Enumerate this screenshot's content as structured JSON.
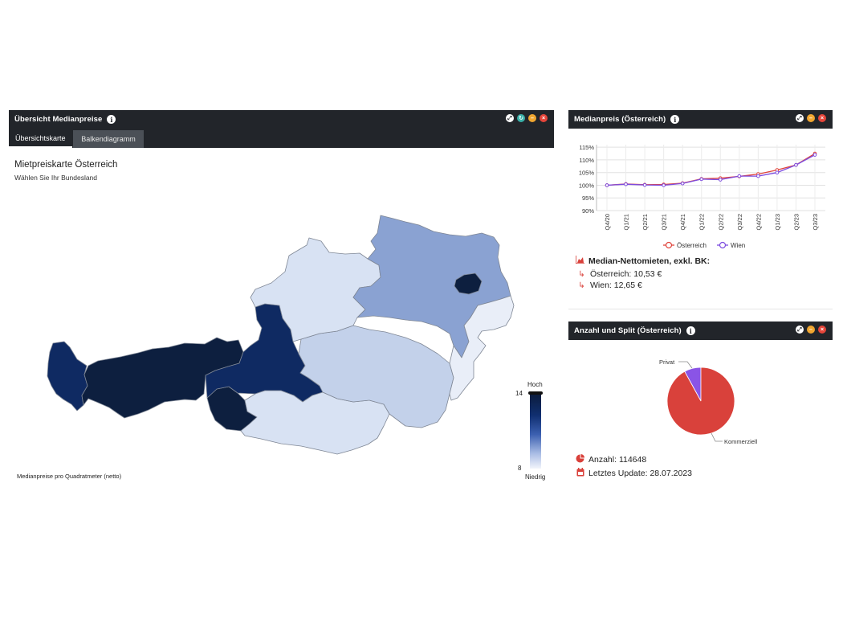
{
  "main_panel": {
    "title": "Übersicht Medianpreise",
    "tabs": [
      {
        "label": "Übersichtskarte",
        "active": true
      },
      {
        "label": "Balkendiagramm",
        "active": false
      }
    ],
    "map_title": "Mietpreiskarte Österreich",
    "map_subtitle": "Wählen Sie Ihr Bundesland",
    "caption": "Medianpreise pro Quadratmeter (netto)",
    "legend": {
      "high_label": "Hoch",
      "low_label": "Niedrig",
      "max_value": "14",
      "min_value": "8"
    },
    "colors": {
      "darkest": "#0d1f3f",
      "dark": "#0f2a62",
      "mid": "#8aa2d2",
      "light": "#c3d1ea",
      "lighter": "#d8e2f3",
      "lightest": "#e9eef8"
    }
  },
  "line_panel": {
    "title": "Medianpreis (Österreich)",
    "stats_heading": "Median-Nettomieten, exkl. BK:",
    "stat_austria": "Österreich: 10,53 €",
    "stat_vienna": "Wien: 12,65 €"
  },
  "pie_panel": {
    "title": "Anzahl und Split (Österreich)",
    "stat_count": "Anzahl: 114648",
    "stat_update": "Letztes Update: 28.07.2023"
  },
  "chart_data": [
    {
      "type": "line",
      "x": [
        "Q4/20",
        "Q1/21",
        "Q2/21",
        "Q3/21",
        "Q4/21",
        "Q1/22",
        "Q2/22",
        "Q3/22",
        "Q4/22",
        "Q1/23",
        "Q2/23",
        "Q3/23"
      ],
      "y_ticks": [
        "90%",
        "95%",
        "100%",
        "105%",
        "110%",
        "115%"
      ],
      "ylim": [
        90,
        116
      ],
      "grid": true,
      "legend_position": "bottom",
      "series": [
        {
          "name": "Österreich",
          "color": "#e0443c",
          "values": [
            100,
            100.5,
            100.2,
            100.3,
            100.8,
            102.5,
            102.8,
            103.5,
            104.4,
            106,
            108,
            112.5
          ]
        },
        {
          "name": "Wien",
          "color": "#7d4ce0",
          "values": [
            100,
            100.4,
            100.1,
            100.0,
            100.7,
            102.4,
            102.2,
            103.6,
            103.6,
            105,
            108,
            112.0
          ]
        }
      ]
    },
    {
      "type": "pie",
      "categories": [
        "Kommerziell",
        "Privat"
      ],
      "values": [
        92,
        8
      ],
      "colors": [
        "#d9413b",
        "#8a54e6"
      ]
    }
  ]
}
